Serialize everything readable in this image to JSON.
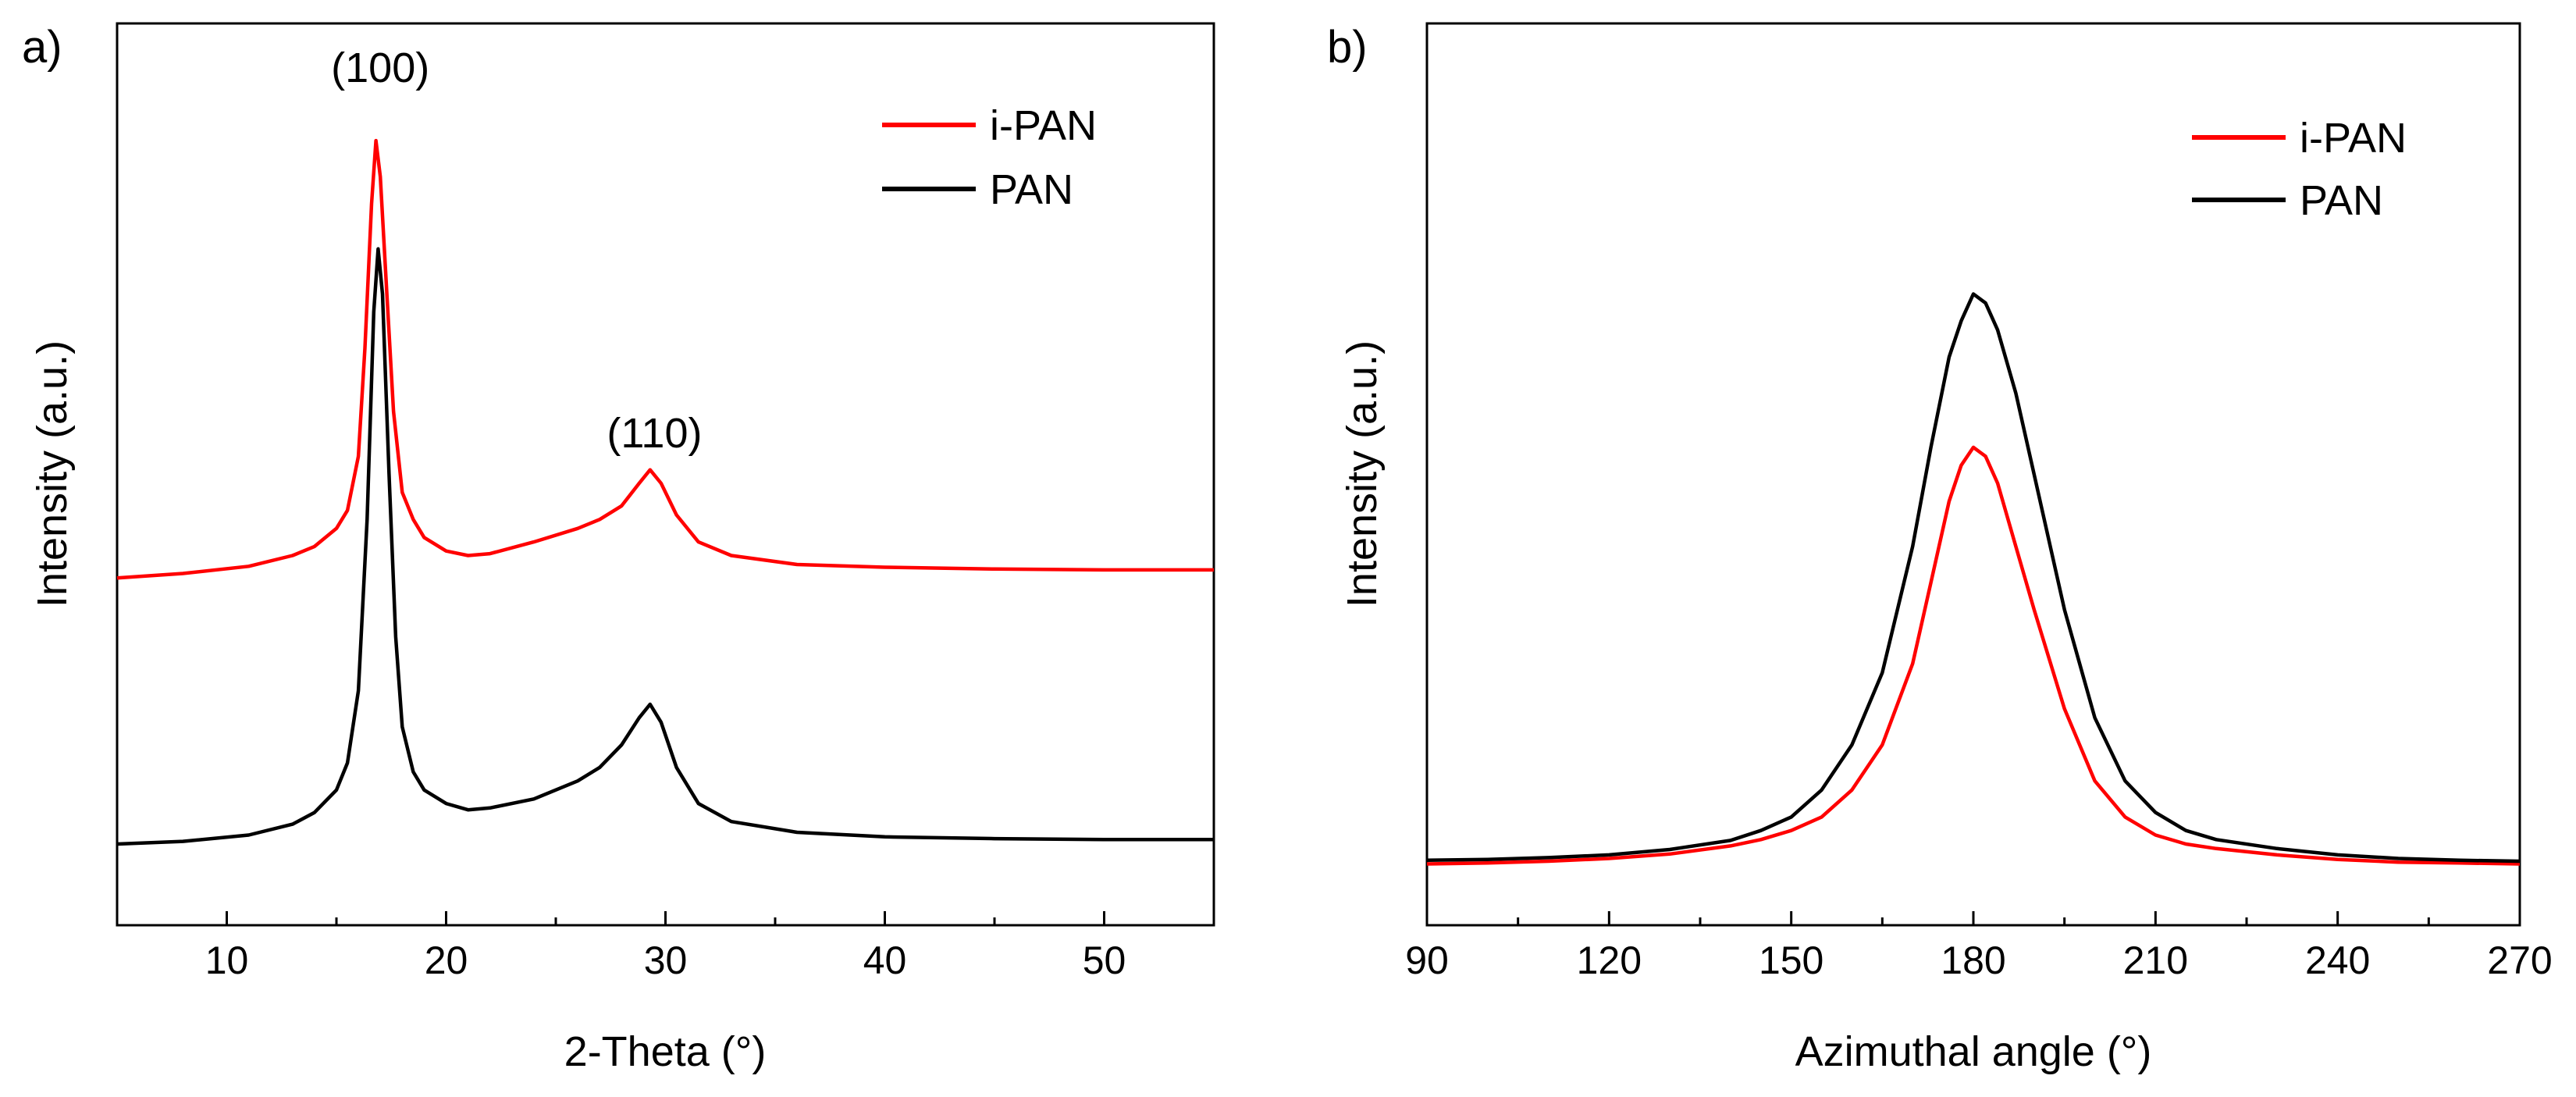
{
  "chart_data": [
    {
      "panel_label": "a)",
      "type": "line",
      "title": "",
      "xlabel": "2-Theta (°)",
      "ylabel": "Intensity (a.u.)",
      "xlim": [
        5,
        55
      ],
      "ylim": [
        0,
        1
      ],
      "xticks": [
        10,
        20,
        30,
        40,
        50
      ],
      "y_ticklabels_shown": false,
      "legend": {
        "position": "top-right"
      },
      "annotations": [
        {
          "text": "(100)",
          "x": 17,
          "y": 0.935
        },
        {
          "text": "(110)",
          "x": 29.5,
          "y": 0.53
        }
      ],
      "series": [
        {
          "name": "i-PAN",
          "color": "#ff0000",
          "x": [
            5,
            8,
            11,
            13,
            14,
            15,
            15.5,
            16,
            16.3,
            16.6,
            16.8,
            17.0,
            17.3,
            17.6,
            18,
            18.5,
            19,
            20,
            21,
            22,
            24,
            26,
            27,
            28,
            28.8,
            29.3,
            29.8,
            30.5,
            31.5,
            33,
            36,
            40,
            45,
            50,
            55
          ],
          "y": [
            0.385,
            0.39,
            0.398,
            0.41,
            0.42,
            0.44,
            0.46,
            0.52,
            0.64,
            0.8,
            0.87,
            0.83,
            0.7,
            0.57,
            0.48,
            0.45,
            0.43,
            0.415,
            0.41,
            0.412,
            0.425,
            0.44,
            0.45,
            0.465,
            0.49,
            0.505,
            0.49,
            0.455,
            0.425,
            0.41,
            0.4,
            0.397,
            0.395,
            0.394,
            0.394
          ]
        },
        {
          "name": "PAN",
          "color": "#000000",
          "x": [
            5,
            8,
            11,
            13,
            14,
            15,
            15.5,
            16,
            16.4,
            16.7,
            16.9,
            17.1,
            17.4,
            17.7,
            18,
            18.5,
            19,
            20,
            21,
            22,
            24,
            26,
            27,
            28,
            28.8,
            29.3,
            29.8,
            30.5,
            31.5,
            33,
            36,
            40,
            45,
            50,
            55
          ],
          "y": [
            0.09,
            0.093,
            0.1,
            0.112,
            0.125,
            0.15,
            0.18,
            0.26,
            0.45,
            0.68,
            0.75,
            0.7,
            0.5,
            0.32,
            0.22,
            0.17,
            0.15,
            0.135,
            0.128,
            0.13,
            0.14,
            0.16,
            0.175,
            0.2,
            0.23,
            0.245,
            0.225,
            0.175,
            0.135,
            0.115,
            0.103,
            0.098,
            0.096,
            0.095,
            0.095
          ]
        }
      ]
    },
    {
      "panel_label": "b)",
      "type": "line",
      "title": "",
      "xlabel": "Azimuthal angle (°)",
      "ylabel": "Intensity (a.u.)",
      "xlim": [
        90,
        270
      ],
      "ylim": [
        0,
        1
      ],
      "xticks": [
        90,
        120,
        150,
        180,
        210,
        240,
        270
      ],
      "y_ticklabels_shown": false,
      "legend": {
        "position": "top-right"
      },
      "annotations": [],
      "series": [
        {
          "name": "i-PAN",
          "color": "#ff0000",
          "x": [
            90,
            100,
            110,
            120,
            130,
            140,
            145,
            150,
            155,
            160,
            165,
            170,
            173,
            176,
            178,
            180,
            182,
            184,
            187,
            190,
            195,
            200,
            205,
            210,
            215,
            220,
            230,
            240,
            250,
            260,
            270
          ],
          "y": [
            0.068,
            0.069,
            0.071,
            0.074,
            0.079,
            0.088,
            0.095,
            0.105,
            0.12,
            0.15,
            0.2,
            0.29,
            0.38,
            0.47,
            0.51,
            0.53,
            0.52,
            0.49,
            0.42,
            0.35,
            0.24,
            0.16,
            0.12,
            0.1,
            0.09,
            0.085,
            0.078,
            0.073,
            0.07,
            0.069,
            0.068
          ]
        },
        {
          "name": "PAN",
          "color": "#000000",
          "x": [
            90,
            100,
            110,
            120,
            130,
            140,
            145,
            150,
            155,
            160,
            165,
            170,
            173,
            176,
            178,
            180,
            182,
            184,
            187,
            190,
            195,
            200,
            205,
            210,
            215,
            220,
            230,
            240,
            250,
            260,
            270
          ],
          "y": [
            0.072,
            0.073,
            0.075,
            0.078,
            0.084,
            0.094,
            0.105,
            0.12,
            0.15,
            0.2,
            0.28,
            0.42,
            0.53,
            0.63,
            0.67,
            0.7,
            0.69,
            0.66,
            0.59,
            0.5,
            0.35,
            0.23,
            0.16,
            0.125,
            0.105,
            0.095,
            0.085,
            0.078,
            0.074,
            0.072,
            0.071
          ]
        }
      ]
    }
  ]
}
